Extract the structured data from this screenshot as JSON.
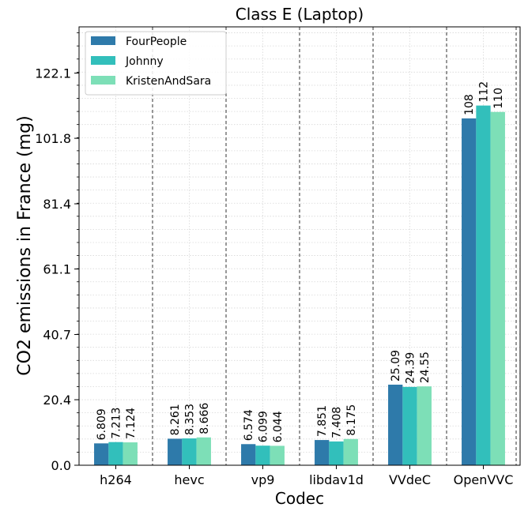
{
  "chart_data": {
    "type": "bar",
    "title": "Class E (Laptop)",
    "xlabel": "Codec",
    "ylabel": "CO2 emissions in France (mg)",
    "categories": [
      "h264",
      "hevc",
      "vp9",
      "libdav1d",
      "VVdeC",
      "OpenVVC"
    ],
    "series": [
      {
        "name": "FourPeople",
        "color": "#2e7aaa",
        "values": [
          6.809,
          8.261,
          6.574,
          7.851,
          25.09,
          108
        ],
        "labels": [
          "6.809",
          "8.261",
          "6.574",
          "7.851",
          "25.09",
          "108"
        ]
      },
      {
        "name": "Johnny",
        "color": "#32bfbb",
        "values": [
          7.213,
          8.353,
          6.099,
          7.408,
          24.39,
          112
        ],
        "labels": [
          "7.213",
          "8.353",
          "6.099",
          "7.408",
          "24.39",
          "112"
        ]
      },
      {
        "name": "KristenAndSara",
        "color": "#7ddfb7",
        "values": [
          7.124,
          8.666,
          6.044,
          8.175,
          24.55,
          110
        ],
        "labels": [
          "7.124",
          "8.666",
          "6.044",
          "8.175",
          "24.55",
          "110"
        ]
      }
    ],
    "yticks": [
      0.0,
      20.4,
      40.7,
      61.1,
      81.4,
      101.8,
      122.1
    ],
    "ytick_labels": [
      "0.0",
      "20.4",
      "40.7",
      "61.1",
      "81.4",
      "101.8",
      "122.1"
    ],
    "ylim": [
      0,
      136.5
    ],
    "grid": true,
    "legend_position": "top-left"
  }
}
